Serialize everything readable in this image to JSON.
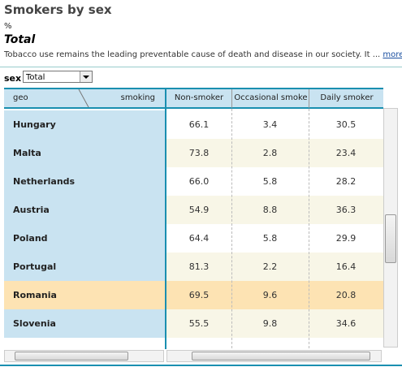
{
  "header": {
    "title": "Smokers by sex",
    "unit": "%",
    "subtitle": "Total",
    "description": "Tobacco use remains the leading preventable cause of death and disease in our society. It ...",
    "more_link": "more"
  },
  "filter": {
    "label": "sex",
    "selected": "Total"
  },
  "table": {
    "corner": {
      "row_dim": "geo",
      "col_dim": "smoking"
    },
    "columns": [
      "Non-smoker",
      "Occasional smoke",
      "Daily smoker"
    ],
    "rows": [
      {
        "label": "Hungary",
        "cells": [
          "66.1",
          "3.4",
          "30.5"
        ]
      },
      {
        "label": "Malta",
        "cells": [
          "73.8",
          "2.8",
          "23.4"
        ]
      },
      {
        "label": "Netherlands",
        "cells": [
          "66.0",
          "5.8",
          "28.2"
        ]
      },
      {
        "label": "Austria",
        "cells": [
          "54.9",
          "8.8",
          "36.3"
        ]
      },
      {
        "label": "Poland",
        "cells": [
          "64.4",
          "5.8",
          "29.9"
        ]
      },
      {
        "label": "Portugal",
        "cells": [
          "81.3",
          "2.2",
          "16.4"
        ]
      },
      {
        "label": "Romania",
        "cells": [
          "69.5",
          "9.6",
          "20.8"
        ]
      },
      {
        "label": "Slovenia",
        "cells": [
          "55.5",
          "9.8",
          "34.6"
        ]
      }
    ]
  }
}
